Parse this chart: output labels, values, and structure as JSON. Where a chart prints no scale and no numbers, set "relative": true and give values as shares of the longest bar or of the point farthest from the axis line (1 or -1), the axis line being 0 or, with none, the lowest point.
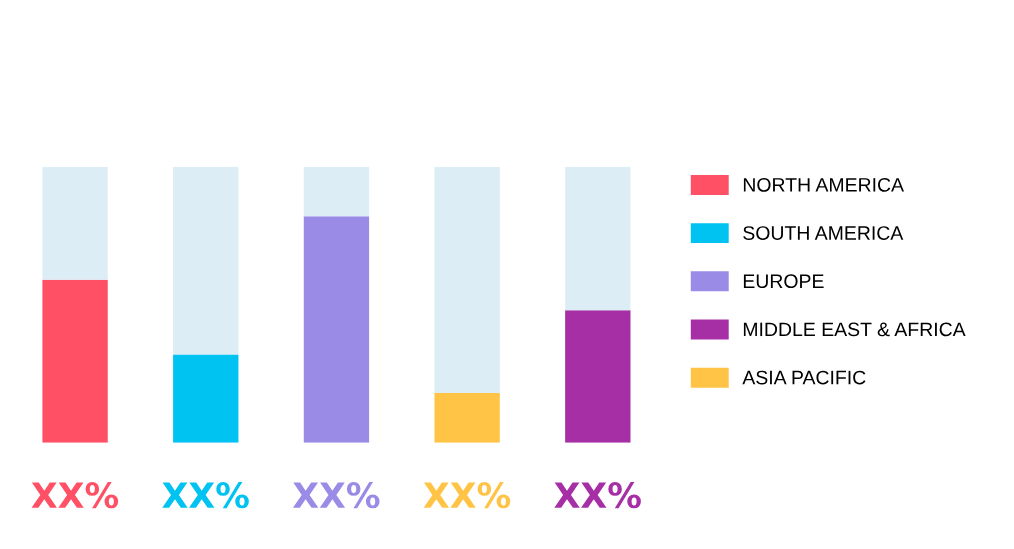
{
  "chart_data": {
    "type": "bar",
    "stacked": true,
    "relative": true,
    "legend": "right",
    "categories": [
      null,
      null,
      null,
      null,
      null
    ],
    "series": [
      {
        "name": "NORTH AMERICA",
        "color": "#ff5066",
        "values": [
          0.59,
          null,
          null,
          null,
          null
        ]
      },
      {
        "name": "SOUTH AMERICA",
        "color": "#00c3f2",
        "values": [
          null,
          0.32,
          null,
          null,
          null
        ]
      },
      {
        "name": "EUROPE",
        "color": "#9a8ce6",
        "values": [
          null,
          null,
          0.82,
          null,
          null
        ]
      },
      {
        "name": "MIDDLE EAST & AFRICA",
        "color": "#a62fa6",
        "values": [
          null,
          null,
          null,
          null,
          0.48
        ]
      },
      {
        "name": "ASIA PACIFIC",
        "color": "#ffc445",
        "values": [
          null,
          null,
          null,
          0.18,
          null
        ]
      },
      {
        "color": "#dcedf5",
        "values": [
          0.41,
          0.68,
          0.18,
          0.82,
          0.52
        ]
      }
    ],
    "annotations": [
      "XX%",
      "XX%",
      "XX%",
      "XX%",
      "XX%"
    ]
  }
}
